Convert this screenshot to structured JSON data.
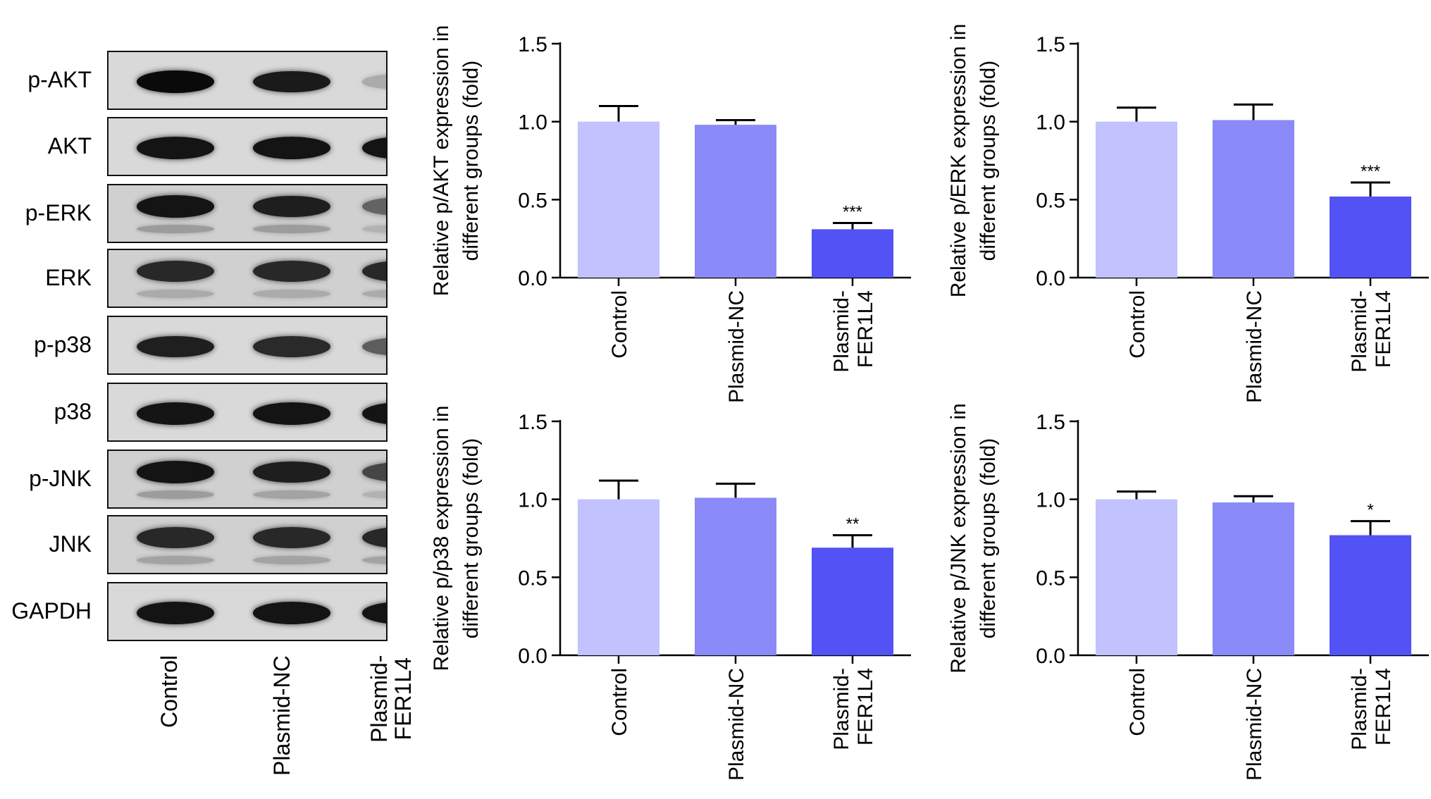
{
  "blot": {
    "rows": [
      {
        "label": "p-AKT",
        "bands": [
          1.0,
          0.92,
          0.22
        ],
        "secondary": [
          0,
          0,
          0
        ]
      },
      {
        "label": "AKT",
        "bands": [
          0.95,
          0.95,
          0.95
        ],
        "secondary": [
          0,
          0,
          0
        ]
      },
      {
        "label": "p-ERK",
        "bands": [
          0.95,
          0.9,
          0.55
        ],
        "secondary": [
          0.35,
          0.35,
          0.2
        ]
      },
      {
        "label": "ERK",
        "bands": [
          0.85,
          0.85,
          0.85
        ],
        "secondary": [
          0.25,
          0.25,
          0.25
        ]
      },
      {
        "label": "p-p38",
        "bands": [
          0.9,
          0.85,
          0.6
        ],
        "secondary": [
          0,
          0,
          0
        ]
      },
      {
        "label": "p38",
        "bands": [
          0.95,
          0.95,
          0.95
        ],
        "secondary": [
          0,
          0,
          0
        ]
      },
      {
        "label": "p-JNK",
        "bands": [
          0.95,
          0.9,
          0.7
        ],
        "secondary": [
          0.35,
          0.3,
          0.2
        ]
      },
      {
        "label": "JNK",
        "bands": [
          0.85,
          0.85,
          0.85
        ],
        "secondary": [
          0.3,
          0.3,
          0.3
        ]
      },
      {
        "label": "GAPDH",
        "bands": [
          0.95,
          0.95,
          0.95
        ],
        "secondary": [
          0,
          0,
          0
        ]
      }
    ],
    "lanes": [
      [
        "Control"
      ],
      [
        "Plasmid-NC"
      ],
      [
        "Plasmid-",
        "FER1L4"
      ]
    ]
  },
  "chart_data": [
    {
      "type": "bar",
      "ylabel": [
        "Relative  p/AKT expression in",
        "different groups (fold)"
      ],
      "categories": [
        [
          "Control"
        ],
        [
          "Plasmid-NC"
        ],
        [
          "Plasmid-",
          "FER1L4"
        ]
      ],
      "values": [
        1.0,
        0.98,
        0.31
      ],
      "errors": [
        0.1,
        0.03,
        0.04
      ],
      "annotations": [
        "",
        "",
        "***"
      ],
      "ylim": [
        0,
        1.5
      ],
      "yticks": [
        "0.0",
        "0.5",
        "1.0",
        "1.5"
      ],
      "colors": [
        "#c2c2ff",
        "#8a8af8",
        "#5252f5"
      ]
    },
    {
      "type": "bar",
      "ylabel": [
        "Relative  p/ERK expression in",
        "different groups (fold)"
      ],
      "categories": [
        [
          "Control"
        ],
        [
          "Plasmid-NC"
        ],
        [
          "Plasmid-",
          "FER1L4"
        ]
      ],
      "values": [
        1.0,
        1.01,
        0.52
      ],
      "errors": [
        0.09,
        0.1,
        0.09
      ],
      "annotations": [
        "",
        "",
        "***"
      ],
      "ylim": [
        0,
        1.5
      ],
      "yticks": [
        "0.0",
        "0.5",
        "1.0",
        "1.5"
      ],
      "colors": [
        "#c2c2ff",
        "#8a8af8",
        "#5252f5"
      ]
    },
    {
      "type": "bar",
      "ylabel": [
        "Relative  p/p38 expression in",
        "different groups (fold)"
      ],
      "categories": [
        [
          "Control"
        ],
        [
          "Plasmid-NC"
        ],
        [
          "Plasmid-",
          "FER1L4"
        ]
      ],
      "values": [
        1.0,
        1.01,
        0.69
      ],
      "errors": [
        0.12,
        0.09,
        0.08
      ],
      "annotations": [
        "",
        "",
        "**"
      ],
      "ylim": [
        0,
        1.5
      ],
      "yticks": [
        "0.0",
        "0.5",
        "1.0",
        "1.5"
      ],
      "colors": [
        "#c2c2ff",
        "#8a8af8",
        "#5252f5"
      ]
    },
    {
      "type": "bar",
      "ylabel": [
        "Relative  p/JNK expression in",
        "different groups (fold)"
      ],
      "categories": [
        [
          "Control"
        ],
        [
          "Plasmid-NC"
        ],
        [
          "Plasmid-",
          "FER1L4"
        ]
      ],
      "values": [
        1.0,
        0.98,
        0.77
      ],
      "errors": [
        0.05,
        0.04,
        0.09
      ],
      "annotations": [
        "",
        "",
        "*"
      ],
      "ylim": [
        0,
        1.5
      ],
      "yticks": [
        "0.0",
        "0.5",
        "1.0",
        "1.5"
      ],
      "colors": [
        "#c2c2ff",
        "#8a8af8",
        "#5252f5"
      ]
    }
  ]
}
